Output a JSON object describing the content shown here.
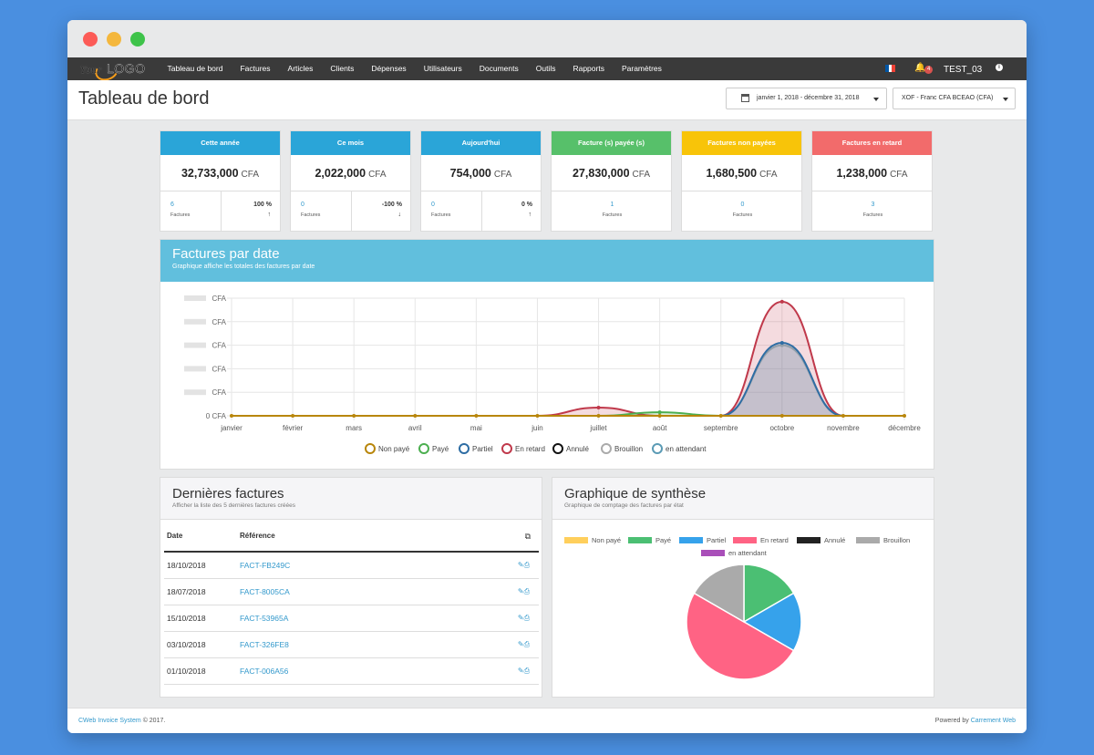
{
  "navbar": {
    "logo_prefix": "Your",
    "logo_word": "LOGO",
    "items": [
      "Tableau de bord",
      "Factures",
      "Articles",
      "Clients",
      "Dépenses",
      "Utilisateurs",
      "Documents",
      "Outils",
      "Rapports",
      "Paramètres"
    ],
    "notification_count": "4",
    "username": "TEST_03",
    "flag_colors": [
      "#0055a4",
      "#ffffff",
      "#ef4135"
    ]
  },
  "page": {
    "title": "Tableau de bord",
    "date_range": "janvier 1, 2018 - décembre 31, 2018",
    "currency": "XOF - Franc CFA BCEAO (CFA)"
  },
  "stats": [
    {
      "title": "Cette année",
      "amount": "32,733,000",
      "unit": "CFA",
      "count": "6",
      "count_label": "Factures",
      "pct": "100 %",
      "arrow": "↑",
      "color": "#2aa5d8"
    },
    {
      "title": "Ce mois",
      "amount": "2,022,000",
      "unit": "CFA",
      "count": "0",
      "count_label": "Factures",
      "pct": "-100 %",
      "arrow": "↓",
      "color": "#2aa5d8"
    },
    {
      "title": "Aujourd'hui",
      "amount": "754,000",
      "unit": "CFA",
      "count": "0",
      "count_label": "Factures",
      "pct": "0 %",
      "arrow": "↑",
      "color": "#2aa5d8"
    },
    {
      "title": "Facture (s) payée (s)",
      "amount": "27,830,000",
      "unit": "CFA",
      "count": "1",
      "count_label": "Factures",
      "color": "#57c06a"
    },
    {
      "title": "Factures non payées",
      "amount": "1,680,500",
      "unit": "CFA",
      "count": "0",
      "count_label": "Factures",
      "color": "#f8c409"
    },
    {
      "title": "Factures en retard",
      "amount": "1,238,000",
      "unit": "CFA",
      "count": "3",
      "count_label": "Factures",
      "color": "#f26b6b"
    }
  ],
  "date_chart": {
    "title": "Factures par date",
    "subtitle": "Graphique affiche les totales des factures par date"
  },
  "chart_data": [
    {
      "type": "area",
      "categories": [
        "janvier",
        "février",
        "mars",
        "avril",
        "mai",
        "juin",
        "juillet",
        "août",
        "septembre",
        "octobre",
        "novembre",
        "décembre"
      ],
      "y_tick_labels": [
        "CFA",
        "CFA",
        "CFA",
        "CFA",
        "CFA",
        "0 CFA"
      ],
      "series": [
        {
          "name": "Non payé",
          "color": "#b8860b",
          "values": [
            0,
            0,
            0,
            0,
            0,
            0,
            0,
            0,
            0,
            0,
            0,
            0
          ]
        },
        {
          "name": "Payé",
          "color": "#4caf50",
          "values": [
            0,
            0,
            0,
            0,
            0,
            0,
            0,
            0.03,
            0,
            0,
            0,
            0
          ]
        },
        {
          "name": "Partiel",
          "color": "#2e6da4",
          "values": [
            0,
            0,
            0,
            0,
            0,
            0,
            0,
            0,
            0,
            0.62,
            0,
            0
          ]
        },
        {
          "name": "En retard",
          "color": "#c0394b",
          "values": [
            0,
            0,
            0,
            0,
            0,
            0,
            0.07,
            0,
            0,
            0.97,
            0,
            0
          ]
        },
        {
          "name": "Annulé",
          "color": "#111111",
          "values": [
            0,
            0,
            0,
            0,
            0,
            0,
            0,
            0,
            0,
            0,
            0,
            0
          ]
        },
        {
          "name": "Brouillon",
          "color": "#aaaaaa",
          "values": [
            0,
            0,
            0,
            0,
            0,
            0,
            0,
            0,
            0,
            0.6,
            0,
            0
          ]
        },
        {
          "name": "en attendant",
          "color": "#5b9bb5",
          "values": [
            0,
            0,
            0,
            0,
            0,
            0,
            0,
            0,
            0,
            0,
            0,
            0
          ]
        }
      ]
    },
    {
      "type": "pie",
      "title": "Graphique de synthèse",
      "subtitle": "Graphique de comptage des factures par état",
      "categories": [
        "Non payé",
        "Payé",
        "Partiel",
        "En retard",
        "Annulé",
        "Brouillon",
        "en attendant"
      ],
      "colors": [
        "#ffcf5c",
        "#4bbf73",
        "#36a2eb",
        "#ff6384",
        "#222222",
        "#aaaaaa",
        "#a94fb9"
      ],
      "values": [
        0,
        1,
        1,
        3,
        0,
        1,
        0
      ]
    }
  ],
  "invoices": {
    "title": "Dernières factures",
    "subtitle": "Afficher la liste des 5 dernières factures créées",
    "col_date": "Date",
    "col_ref": "Référence",
    "rows": [
      {
        "date": "18/10/2018",
        "ref": "FACT-FB249C"
      },
      {
        "date": "18/07/2018",
        "ref": "FACT-8005CA"
      },
      {
        "date": "15/10/2018",
        "ref": "FACT-53965A"
      },
      {
        "date": "03/10/2018",
        "ref": "FACT-326FE8"
      },
      {
        "date": "01/10/2018",
        "ref": "FACT-006A56"
      }
    ]
  },
  "footer": {
    "left_link": "CWeb Invoice System",
    "left_text": "© 2017.",
    "right_text": "Powered by",
    "right_link": "Carrement Web"
  }
}
